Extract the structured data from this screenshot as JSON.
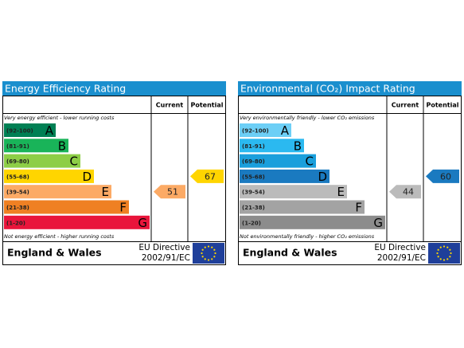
{
  "panels": [
    {
      "title": "Energy Efficiency Rating",
      "current_header": "Current",
      "potential_header": "Potential",
      "top_note": "Very energy efficient - lower running costs",
      "bottom_note": "Not energy efficient - higher running costs",
      "bands": [
        {
          "range": "(92-100)",
          "letter": "A",
          "color": "#008054"
        },
        {
          "range": "(81-91)",
          "letter": "B",
          "color": "#19b459"
        },
        {
          "range": "(69-80)",
          "letter": "C",
          "color": "#8dce46"
        },
        {
          "range": "(55-68)",
          "letter": "D",
          "color": "#ffd500"
        },
        {
          "range": "(39-54)",
          "letter": "E",
          "color": "#fcaa65"
        },
        {
          "range": "(21-38)",
          "letter": "F",
          "color": "#ef8023"
        },
        {
          "range": "(1-20)",
          "letter": "G",
          "color": "#e9153b"
        }
      ],
      "current": 51,
      "potential": 67,
      "region": "England & Wales",
      "directive": [
        "EU Directive",
        "2002/91/EC"
      ]
    },
    {
      "title": "Environmental (CO₂) Impact Rating",
      "current_header": "Current",
      "potential_header": "Potential",
      "top_note": "Very environmentally friendly - lower CO₂ emissions",
      "bottom_note": "Not environmentally friendly - higher CO₂ emissions",
      "bands": [
        {
          "range": "(92-100)",
          "letter": "A",
          "color": "#6dcff6"
        },
        {
          "range": "(81-91)",
          "letter": "B",
          "color": "#2bb9f0"
        },
        {
          "range": "(69-80)",
          "letter": "C",
          "color": "#1a9fdc"
        },
        {
          "range": "(55-68)",
          "letter": "D",
          "color": "#1a7ac0"
        },
        {
          "range": "(39-54)",
          "letter": "E",
          "color": "#bbbbbb"
        },
        {
          "range": "(21-38)",
          "letter": "F",
          "color": "#a3a3a3"
        },
        {
          "range": "(1-20)",
          "letter": "G",
          "color": "#8c8c8c"
        }
      ],
      "current": 44,
      "potential": 60,
      "region": "England & Wales",
      "directive": [
        "EU Directive",
        "2002/91/EC"
      ]
    }
  ]
}
